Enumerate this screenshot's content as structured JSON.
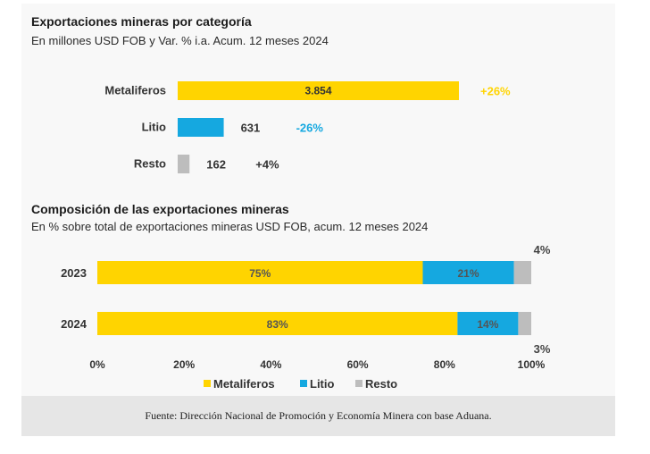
{
  "chart_data": [
    {
      "type": "bar",
      "orientation": "horizontal",
      "title": "Exportaciones mineras por categoría",
      "subtitle": "En millones USD FOB y Var. % i.a. Acum. 12 meses 2024",
      "categories": [
        "Metaliferos",
        "Litio",
        "Resto"
      ],
      "values": [
        3854,
        631,
        162
      ],
      "value_labels": [
        "3.854",
        "631",
        "162"
      ],
      "var_labels": [
        "+26%",
        "-26%",
        "+4%"
      ],
      "colors": [
        "#ffd400",
        "#15a8e0",
        "#bdbdbd"
      ],
      "var_colors": [
        "#ffd400",
        "#15a8e0",
        "#333333"
      ]
    },
    {
      "type": "bar",
      "orientation": "horizontal",
      "stacked": true,
      "title": "Composición de las exportaciones mineras",
      "subtitle": "En % sobre total de exportaciones mineras USD FOB, acum. 12 meses 2024",
      "categories": [
        "2023",
        "2024"
      ],
      "series": [
        {
          "name": "Metaliferos",
          "values": [
            75,
            83
          ],
          "labels": [
            "75%",
            "83%"
          ],
          "color": "#ffd400"
        },
        {
          "name": "Litio",
          "values": [
            21,
            14
          ],
          "labels": [
            "21%",
            "14%"
          ],
          "color": "#15a8e0"
        },
        {
          "name": "Resto",
          "values": [
            4,
            3
          ],
          "labels": [
            "4%",
            "3%"
          ],
          "color": "#bdbdbd"
        }
      ],
      "xlim": [
        0,
        100
      ],
      "xticks": [
        "0%",
        "20%",
        "40%",
        "60%",
        "80%",
        "100%"
      ],
      "legend": "bottom"
    }
  ],
  "footer": "Fuente: Dirección Nacional de Promoción y Economía Minera con base Aduana."
}
